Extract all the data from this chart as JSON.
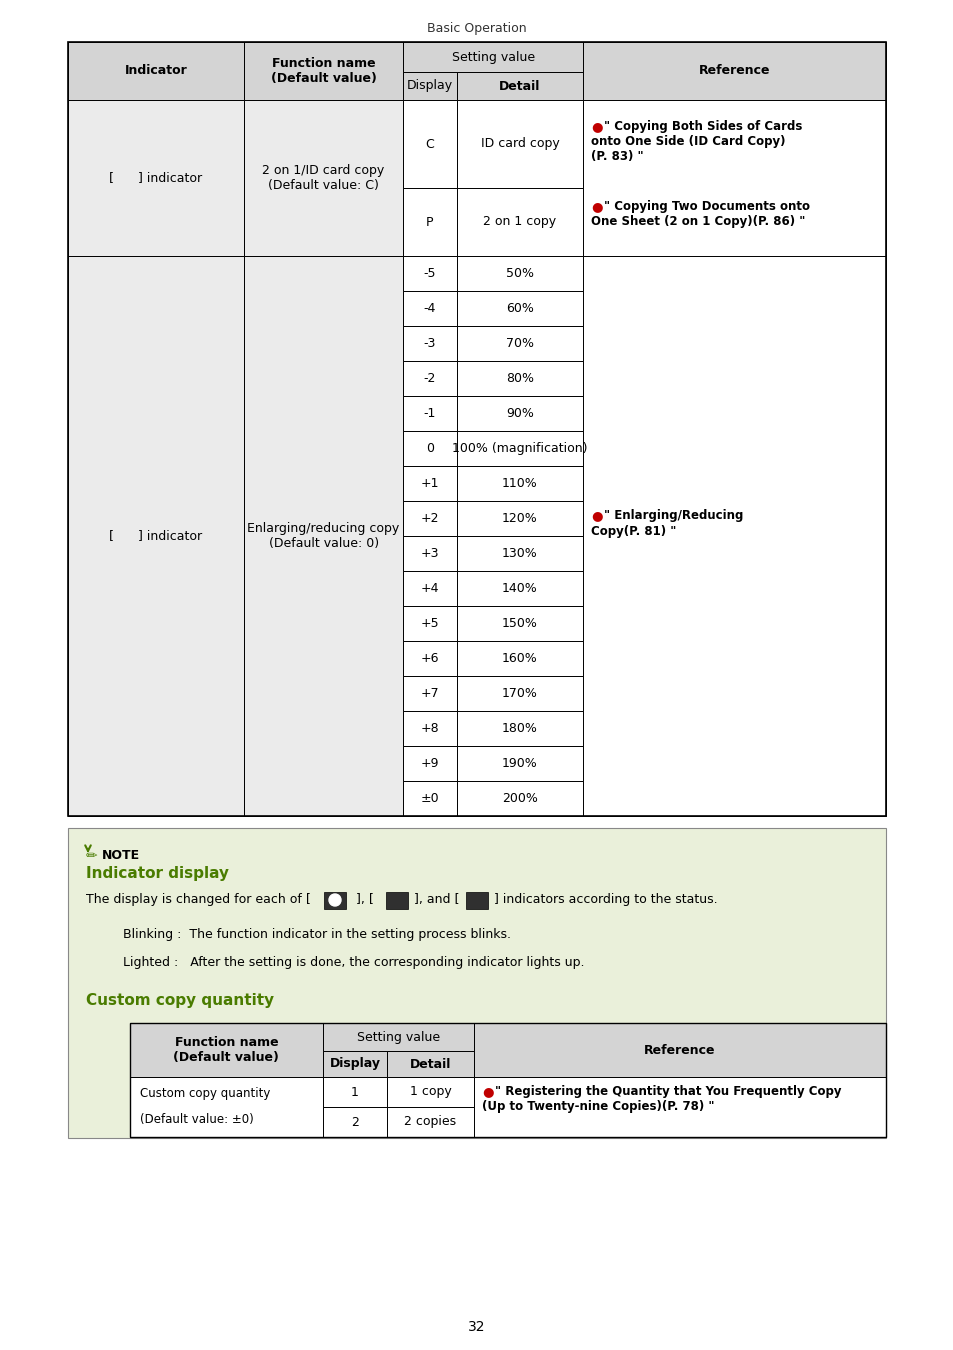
{
  "page_title": "Basic Operation",
  "page_number": "32",
  "bg": "#ffffff",
  "hdr_bg": "#d4d4d4",
  "cell_bg": "#ebebeb",
  "note_bg": "#eaf0da",
  "red": "#c00000",
  "green": "#4a7c00",
  "black": "#000000",
  "gray_border": "#888888",
  "t1_rows_g2": [
    [
      "-5",
      "50%"
    ],
    [
      "-4",
      "60%"
    ],
    [
      "-3",
      "70%"
    ],
    [
      "-2",
      "80%"
    ],
    [
      "-1",
      "90%"
    ],
    [
      "0",
      "100% (magnification)"
    ],
    [
      "+1",
      "110%"
    ],
    [
      "+2",
      "120%"
    ],
    [
      "+3",
      "130%"
    ],
    [
      "+4",
      "140%"
    ],
    [
      "+5",
      "150%"
    ],
    [
      "+6",
      "160%"
    ],
    [
      "+7",
      "170%"
    ],
    [
      "+8",
      "180%"
    ],
    [
      "+9",
      "190%"
    ],
    [
      "±0",
      "200%"
    ]
  ]
}
